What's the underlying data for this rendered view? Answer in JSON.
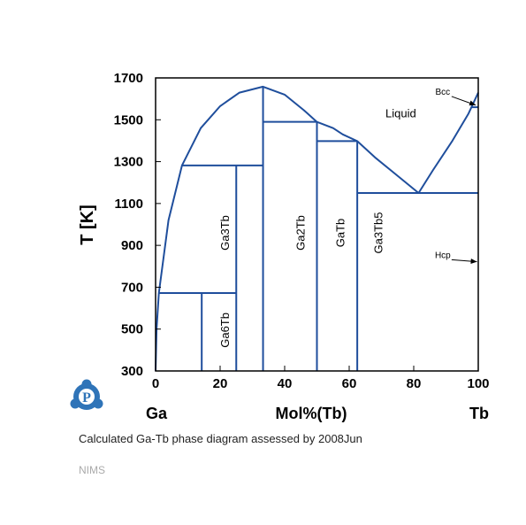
{
  "chart_data": {
    "type": "phase-diagram",
    "ylabel": "T [K]",
    "xlabel": "Mol%(Tb)",
    "left_element": "Ga",
    "right_element": "Tb",
    "xlim": [
      0,
      100
    ],
    "ylim": [
      300,
      1700
    ],
    "x_ticks": [
      0,
      20,
      40,
      60,
      80,
      100
    ],
    "y_ticks": [
      300,
      500,
      700,
      900,
      1100,
      1300,
      1500,
      1700
    ],
    "line_color": "#1f4e9c",
    "liquidus": [
      [
        0,
        300
      ],
      [
        0.3,
        500
      ],
      [
        1,
        672
      ],
      [
        4,
        1020
      ],
      [
        8.2,
        1282
      ],
      [
        14,
        1460
      ],
      [
        20,
        1565
      ],
      [
        26,
        1630
      ],
      [
        33.3,
        1658
      ],
      [
        40,
        1620
      ],
      [
        46,
        1545
      ],
      [
        50,
        1490
      ],
      [
        55,
        1460
      ],
      [
        58,
        1430
      ],
      [
        62.5,
        1398
      ],
      [
        68,
        1320
      ],
      [
        74,
        1245
      ],
      [
        81.5,
        1150
      ],
      [
        86,
        1260
      ],
      [
        92,
        1400
      ],
      [
        97,
        1530
      ],
      [
        100,
        1630
      ]
    ],
    "lines": [
      [
        [
          1,
          672
        ],
        [
          25,
          672
        ]
      ],
      [
        [
          14.3,
          300
        ],
        [
          14.3,
          672
        ]
      ],
      [
        [
          25,
          300
        ],
        [
          25,
          1282
        ]
      ],
      [
        [
          8.2,
          1282
        ],
        [
          33.3,
          1282
        ]
      ],
      [
        [
          33.3,
          300
        ],
        [
          33.3,
          1658
        ]
      ],
      [
        [
          33.3,
          1490
        ],
        [
          50,
          1490
        ]
      ],
      [
        [
          50,
          300
        ],
        [
          50,
          1490
        ]
      ],
      [
        [
          50,
          1398
        ],
        [
          62.5,
          1398
        ]
      ],
      [
        [
          62.5,
          300
        ],
        [
          62.5,
          1398
        ]
      ],
      [
        [
          62.5,
          1150
        ],
        [
          100,
          1150
        ]
      ],
      [
        [
          98,
          1560
        ],
        [
          100,
          1560
        ]
      ],
      [
        [
          98,
          1560
        ],
        [
          98,
          1560
        ]
      ]
    ],
    "phases": [
      {
        "label": "Ga3Tb",
        "x": 22.7,
        "y": 960,
        "rotated": true
      },
      {
        "label": "Ga6Tb",
        "x": 22.7,
        "y": 495,
        "rotated": true
      },
      {
        "label": "Ga2Tb",
        "x": 46.2,
        "y": 960,
        "rotated": true
      },
      {
        "label": "GaTb",
        "x": 58.5,
        "y": 960,
        "rotated": true
      },
      {
        "label": "Ga3Tb5",
        "x": 70.3,
        "y": 960,
        "rotated": true
      }
    ],
    "regions": [
      {
        "label": "Liquid",
        "x": 76,
        "y": 1512
      }
    ],
    "annotations": [
      {
        "label": "Bcc",
        "text_x": 89,
        "text_y": 1620,
        "arrow_to": [
          99.2,
          1570
        ]
      },
      {
        "label": "Hcp",
        "text_x": 89,
        "text_y": 840,
        "arrow_to": [
          99.6,
          822
        ]
      }
    ]
  },
  "caption": {
    "text": "Calculated Ga-Tb phase diagram assessed by ",
    "year": "2008Jun"
  },
  "credit": "NIMS",
  "logo": {
    "letter": "P",
    "color": "#2f74b8"
  }
}
